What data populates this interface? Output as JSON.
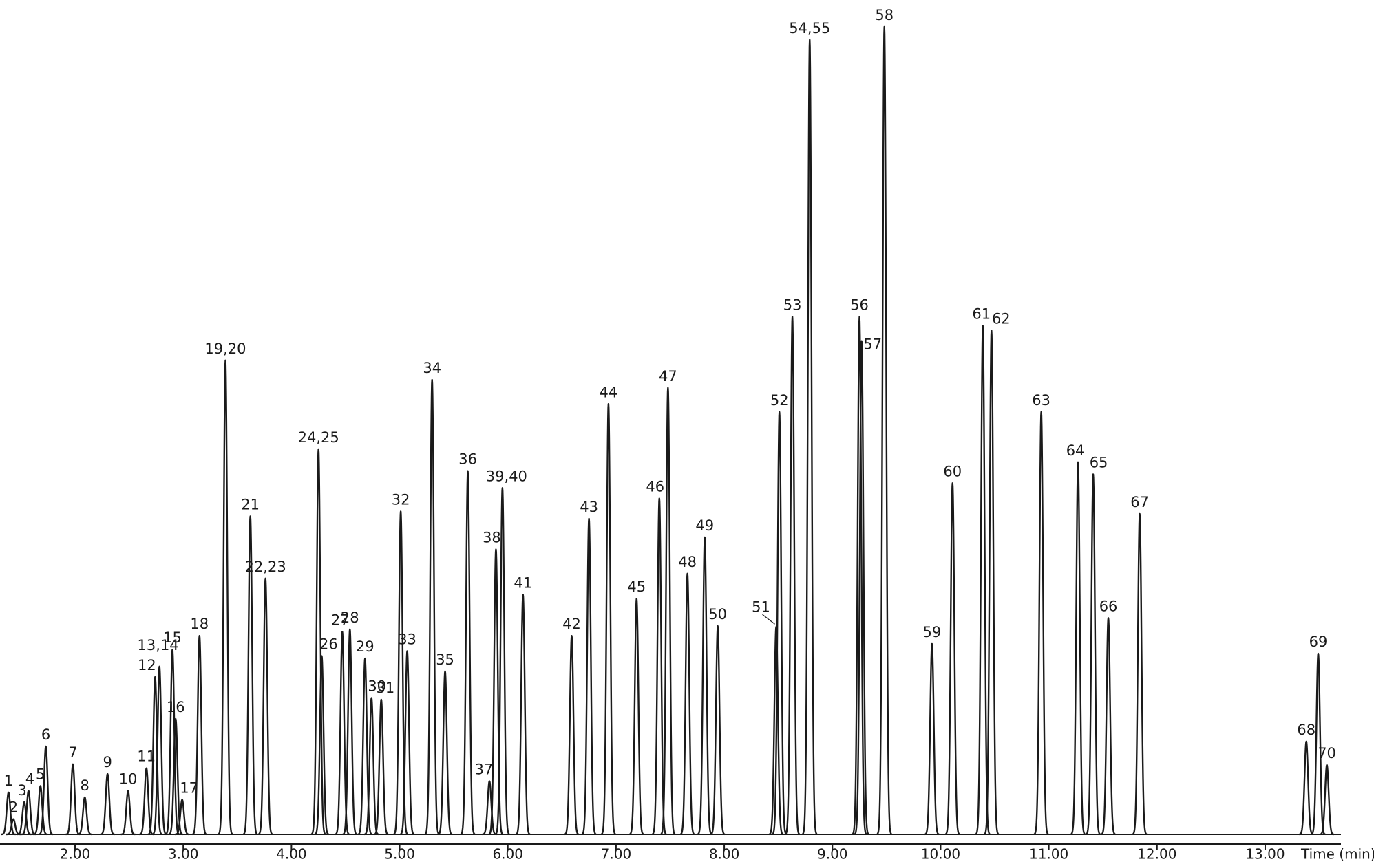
{
  "chart_data": {
    "type": "chromatogram",
    "x_label": "Time (min)",
    "color": "#1a1a1a",
    "xlim": [
      1.37,
      13.7
    ],
    "ylim": [
      0,
      100
    ],
    "xticks": [
      {
        "value": 2,
        "label": "2.00"
      },
      {
        "value": 3,
        "label": "3.00"
      },
      {
        "value": 4,
        "label": "4.00"
      },
      {
        "value": 5,
        "label": "5.00"
      },
      {
        "value": 6,
        "label": "6.00"
      },
      {
        "value": 7,
        "label": "7.00"
      },
      {
        "value": 8,
        "label": "8.00"
      },
      {
        "value": 9,
        "label": "9.00"
      },
      {
        "value": 10,
        "label": "10.00"
      },
      {
        "value": 11,
        "label": "11.00"
      },
      {
        "value": 12,
        "label": "12.00"
      },
      {
        "value": 13,
        "label": "13.00"
      }
    ],
    "peaks": {
      "labels": [
        "1",
        "2",
        "3",
        "4",
        "5",
        "6",
        "7",
        "8",
        "9",
        "10",
        "11",
        "12",
        "13,14",
        "15",
        "16",
        "17",
        "18",
        "19,20",
        "21",
        "22,23",
        "24,25",
        "26",
        "27",
        "28",
        "29",
        "30",
        "31",
        "32",
        "33",
        "34",
        "35",
        "36",
        "37",
        "38",
        "39,40",
        "41",
        "42",
        "43",
        "44",
        "45",
        "46",
        "47",
        "48",
        "49",
        "50",
        "51",
        "52",
        "53",
        "54,55",
        "56",
        "57",
        "58",
        "59",
        "60",
        "61",
        "62",
        "63",
        "64",
        "65",
        "66",
        "67",
        "68",
        "69",
        "70"
      ],
      "x": [
        1.385,
        1.43,
        1.53,
        1.57,
        1.68,
        1.73,
        1.98,
        2.09,
        2.3,
        2.49,
        2.66,
        2.74,
        2.78,
        2.9,
        2.93,
        2.99,
        3.15,
        3.39,
        3.62,
        3.76,
        4.25,
        4.28,
        4.47,
        4.54,
        4.68,
        4.74,
        4.83,
        5.01,
        5.07,
        5.3,
        5.42,
        5.63,
        5.83,
        5.89,
        5.95,
        6.14,
        6.59,
        6.75,
        6.93,
        7.19,
        7.4,
        7.48,
        7.66,
        7.82,
        7.94,
        8.48,
        8.51,
        8.63,
        8.79,
        9.25,
        9.27,
        9.48,
        9.92,
        10.11,
        10.39,
        10.47,
        10.93,
        11.27,
        11.41,
        11.55,
        11.84,
        13.38,
        13.49,
        13.57
      ],
      "values": [
        5.2,
        1.9,
        4,
        5.4,
        6,
        10.9,
        8.7,
        4.6,
        7.5,
        5.4,
        8.2,
        19.5,
        20.8,
        22.9,
        14.3,
        4.3,
        24.6,
        58.7,
        39.4,
        31.7,
        47.7,
        22.1,
        25.1,
        25.4,
        21.8,
        16.9,
        16.7,
        40,
        22.7,
        56.3,
        20.2,
        45,
        6.6,
        35.3,
        42.9,
        29.7,
        24.6,
        39.1,
        53.3,
        29.2,
        41.6,
        55.3,
        32.3,
        36.8,
        25.8,
        25.7,
        52.3,
        64.1,
        98.4,
        64.1,
        61.1,
        100,
        23.6,
        43.5,
        63,
        62.4,
        52.3,
        46.1,
        44.6,
        26.8,
        39.7,
        11.5,
        22.4,
        8.6
      ]
    }
  }
}
